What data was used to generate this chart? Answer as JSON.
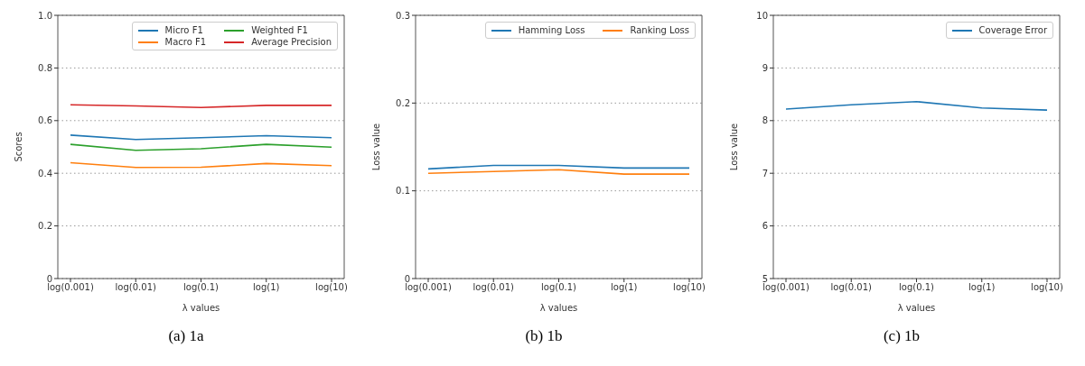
{
  "chart_data": [
    {
      "type": "line",
      "xlabel": "λ values",
      "ylabel": "Scores",
      "categories": [
        "log(0.001)",
        "log(0.01)",
        "log(0.1)",
        "log(1)",
        "log(10)"
      ],
      "series": [
        {
          "name": "Micro F1",
          "color": "#1f77b4",
          "values": [
            0.545,
            0.528,
            0.535,
            0.543,
            0.535
          ]
        },
        {
          "name": "Macro F1",
          "color": "#ff7f0e",
          "values": [
            0.44,
            0.422,
            0.423,
            0.437,
            0.429
          ]
        },
        {
          "name": "Weighted F1",
          "color": "#2ca02c",
          "values": [
            0.51,
            0.487,
            0.493,
            0.51,
            0.499
          ]
        },
        {
          "name": "Average Precision",
          "color": "#d62728",
          "values": [
            0.66,
            0.656,
            0.65,
            0.658,
            0.658
          ]
        }
      ],
      "ylim": [
        0,
        1
      ],
      "yticks": [
        0,
        0.2,
        0.4,
        0.6,
        0.8,
        {
          "value": 1,
          "label": "1.0"
        }
      ],
      "grid": "y",
      "legend": "top right",
      "annotations": [
        "(a) 1a"
      ]
    },
    {
      "type": "line",
      "xlabel": "λ values",
      "ylabel": "Loss value",
      "categories": [
        "log(0.001)",
        "log(0.01)",
        "log(0.1)",
        "log(1)",
        "log(10)"
      ],
      "series": [
        {
          "name": "Hamming Loss",
          "color": "#1f77b4",
          "values": [
            0.125,
            0.129,
            0.129,
            0.126,
            0.126
          ]
        },
        {
          "name": "Ranking Loss",
          "color": "#ff7f0e",
          "values": [
            0.12,
            0.122,
            0.124,
            0.119,
            0.119
          ]
        }
      ],
      "ylim": [
        0,
        0.3
      ],
      "yticks": [
        0,
        0.1,
        0.2,
        0.3
      ],
      "grid": "y",
      "legend": "top right",
      "annotations": [
        "(b) 1b"
      ]
    },
    {
      "type": "line",
      "xlabel": "λ values",
      "ylabel": "Loss value",
      "categories": [
        "log(0.001)",
        "log(0.01)",
        "log(0.1)",
        "log(1)",
        "log(10)"
      ],
      "series": [
        {
          "name": "Coverage Error",
          "color": "#1f77b4",
          "values": [
            8.22,
            8.3,
            8.36,
            8.24,
            8.2
          ]
        }
      ],
      "ylim": [
        5,
        10
      ],
      "yticks": [
        5,
        6,
        7,
        8,
        9,
        10
      ],
      "grid": "y",
      "legend": "top right",
      "annotations": [
        "(c) 1b"
      ]
    }
  ]
}
